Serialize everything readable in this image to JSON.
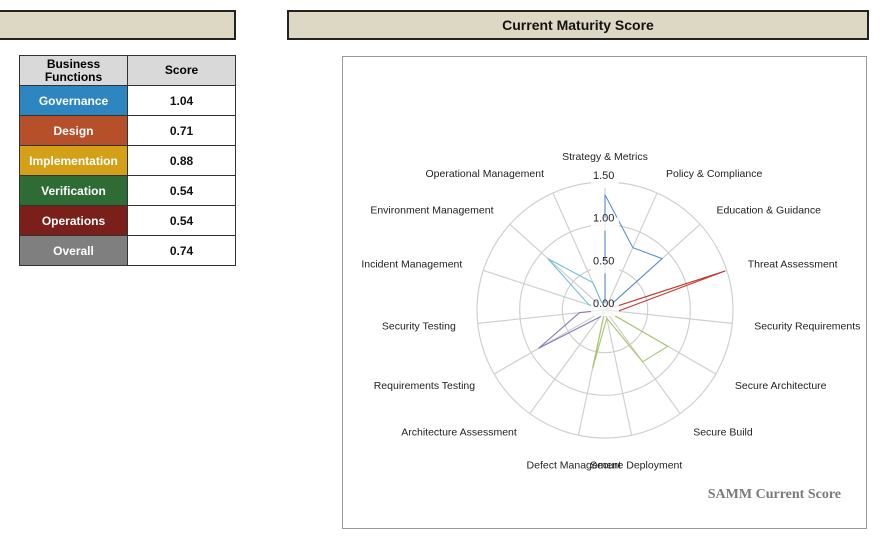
{
  "header_left": "",
  "header_right": "Current Maturity Score",
  "table": {
    "headers": [
      "Business Functions",
      "Score"
    ],
    "rows": [
      {
        "function": "Governance",
        "score": "1.04",
        "color": "#2e86c1"
      },
      {
        "function": "Design",
        "score": "0.71",
        "color": "#b5502a"
      },
      {
        "function": "Implementation",
        "score": "0.88",
        "color": "#d4a017"
      },
      {
        "function": "Verification",
        "score": "0.54",
        "color": "#2e6b35"
      },
      {
        "function": "Operations",
        "score": "0.54",
        "color": "#7a1f1a"
      },
      {
        "function": "Overall",
        "score": "0.74",
        "color": "#7f7f7f"
      }
    ]
  },
  "chart_data": {
    "type": "radar",
    "title": "SAMM Current Score",
    "rlim": [
      0,
      1.5
    ],
    "ticks": [
      "0.00",
      "0.50",
      "1.00",
      "1.50"
    ],
    "tick_values": [
      0,
      0.5,
      1.0,
      1.5
    ],
    "axes": [
      "Strategy & Metrics",
      "Policy & Compliance",
      "Education & Guidance",
      "Threat Assessment",
      "Security Requirements",
      "Secure Architecture",
      "Secure Build",
      "Secure Deployment",
      "Defect Management",
      "Architecture Assessment",
      "Requirements Testing",
      "Security Testing",
      "Incident Management",
      "Environment Management",
      "Operational Management"
    ],
    "series": [
      {
        "function": "Governance",
        "color": "#5b8fd0",
        "values": [
          1.35,
          0.8,
          0.9,
          0,
          0,
          0,
          0,
          0,
          0,
          0,
          0,
          0,
          0,
          0,
          0
        ]
      },
      {
        "function": "Design",
        "color": "#c0392b",
        "values": [
          0,
          0,
          0,
          1.48,
          0.15,
          0,
          0,
          0,
          0,
          0,
          0,
          0,
          0,
          0,
          0
        ]
      },
      {
        "function": "Implementation",
        "color": "#a8c46a",
        "values": [
          0,
          0,
          0,
          0,
          0,
          0.85,
          0.75,
          0.1,
          0.7,
          0,
          0,
          0,
          0,
          0,
          0
        ]
      },
      {
        "function": "Verification",
        "color": "#8b7bb8",
        "values": [
          0,
          0,
          0,
          0,
          0,
          0,
          0,
          0,
          0,
          0.1,
          0.9,
          0.3,
          0,
          0,
          0
        ]
      },
      {
        "function": "Operations",
        "color": "#6fc0d8",
        "values": [
          0,
          0,
          0,
          0,
          0,
          0,
          0,
          0,
          0,
          0,
          0,
          0,
          0.2,
          0.9,
          0.35
        ]
      }
    ]
  }
}
